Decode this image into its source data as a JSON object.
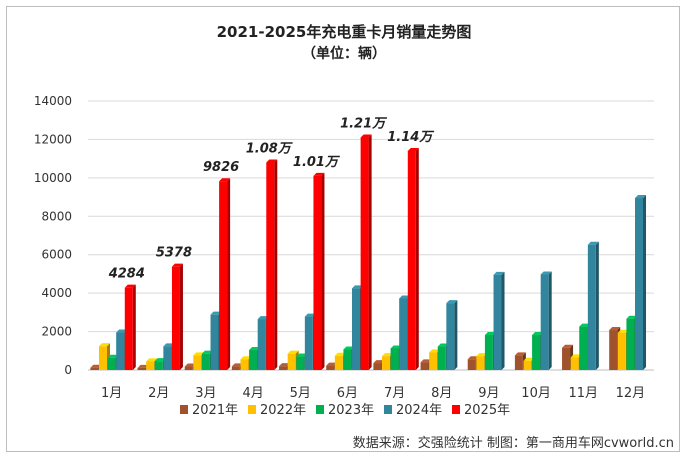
{
  "chart_data": {
    "type": "bar",
    "title": "2021-2025年充电重卡月销量走势图",
    "subtitle": "（单位：辆）",
    "categories": [
      "1月",
      "2月",
      "3月",
      "4月",
      "5月",
      "6月",
      "7月",
      "8月",
      "9月",
      "10月",
      "11月",
      "12月"
    ],
    "ylim": [
      0,
      14000
    ],
    "yticks": [
      0,
      2000,
      4000,
      6000,
      8000,
      10000,
      12000,
      14000
    ],
    "grid": true,
    "legend_position": "bottom",
    "series": [
      {
        "name": "2021年",
        "color": "#a0522d",
        "values": [
          120,
          110,
          180,
          190,
          200,
          230,
          360,
          400,
          560,
          760,
          1160,
          2080
        ]
      },
      {
        "name": "2022年",
        "color": "#ffc000",
        "values": [
          1240,
          450,
          760,
          560,
          850,
          740,
          720,
          920,
          720,
          480,
          660,
          1940
        ]
      },
      {
        "name": "2023年",
        "color": "#00b050",
        "values": [
          640,
          460,
          850,
          1040,
          700,
          1070,
          1120,
          1220,
          1820,
          1820,
          2260,
          2670
        ]
      },
      {
        "name": "2024年",
        "color": "#31859c",
        "values": [
          1950,
          1230,
          2880,
          2650,
          2780,
          4250,
          3720,
          3480,
          4950,
          4970,
          6520,
          8950
        ]
      },
      {
        "name": "2025年",
        "color": "#ff0000",
        "values": [
          4284,
          5378,
          9826,
          10800,
          10100,
          12100,
          11400,
          null,
          null,
          null,
          null,
          null
        ]
      }
    ],
    "data_labels": [
      "4284",
      "5378",
      "9826",
      "1.08万",
      "1.01万",
      "1.21万",
      "1.14万"
    ]
  },
  "footer": "数据来源：交强险统计 制图：第一商用车网cvworld.cn"
}
